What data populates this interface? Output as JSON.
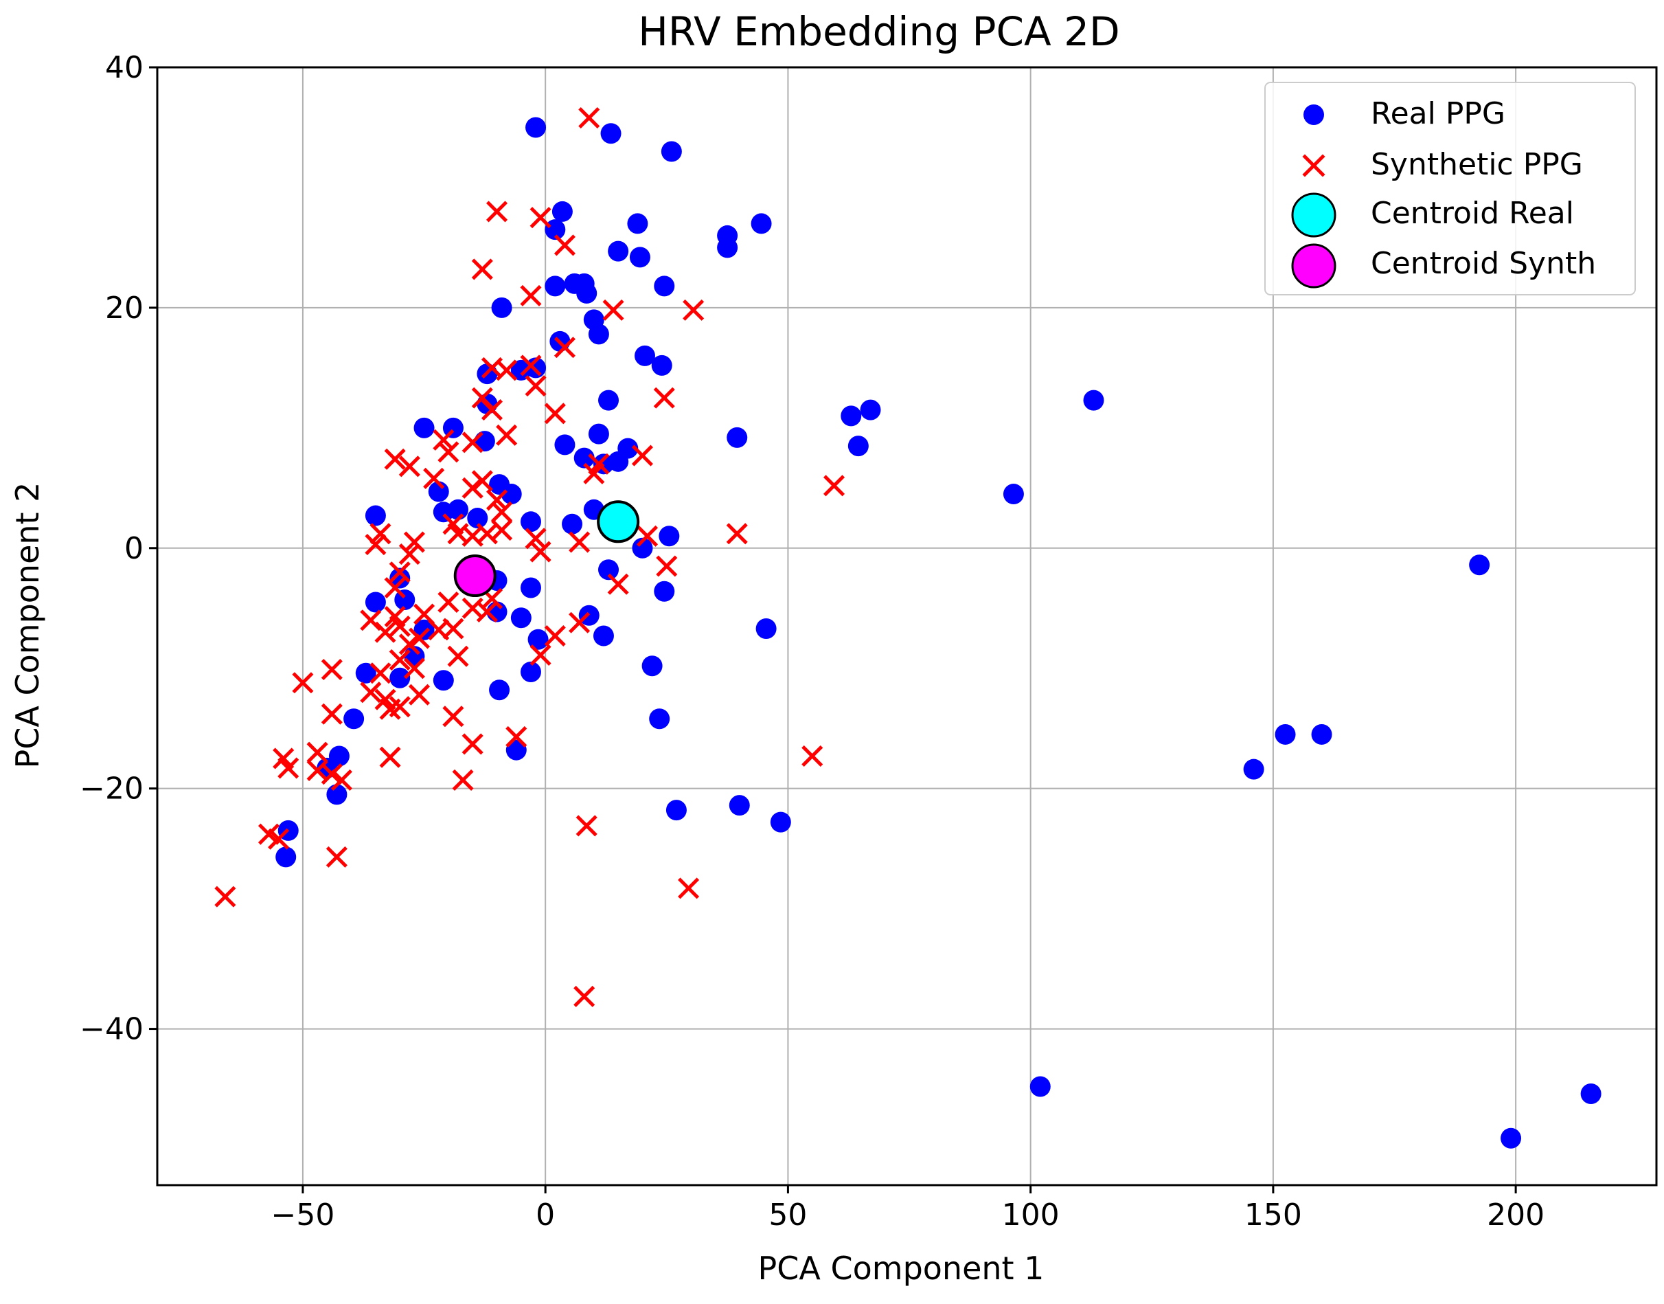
{
  "chart_data": {
    "type": "scatter",
    "title": "HRV Embedding PCA 2D",
    "xlabel": "PCA Component 1",
    "ylabel": "PCA Component 2",
    "xlim": [
      -80,
      229
    ],
    "ylim": [
      -53,
      40
    ],
    "xticks": [
      -50,
      0,
      50,
      100,
      150,
      200
    ],
    "yticks": [
      -40,
      -20,
      0,
      20,
      40
    ],
    "xtick_labels": [
      "−50",
      "0",
      "50",
      "100",
      "150",
      "200"
    ],
    "ytick_labels": [
      "−40",
      "−20",
      "0",
      "20",
      "40"
    ],
    "grid": true,
    "legend_position": "top-right",
    "legend": [
      {
        "label": "Real PPG",
        "marker": "dot",
        "color": "#0000ff"
      },
      {
        "label": "Synthetic PPG",
        "marker": "x",
        "color": "#ff0000"
      },
      {
        "label": "Centroid Real",
        "marker": "big-circle",
        "color": "#00ffff"
      },
      {
        "label": "Centroid Synth",
        "marker": "big-circle",
        "color": "#ff00ff"
      }
    ],
    "series": [
      {
        "name": "Real PPG",
        "marker": "dot",
        "color": "#0000ff",
        "points": [
          [
            -2,
            35
          ],
          [
            13.5,
            34.5
          ],
          [
            26,
            33
          ],
          [
            3.5,
            28
          ],
          [
            19,
            27
          ],
          [
            2,
            26.5
          ],
          [
            37.5,
            26
          ],
          [
            44.5,
            27
          ],
          [
            37.5,
            25
          ],
          [
            15,
            24.7
          ],
          [
            19.5,
            24.2
          ],
          [
            24.5,
            21.8
          ],
          [
            2,
            21.8
          ],
          [
            6,
            22
          ],
          [
            8,
            22
          ],
          [
            8.5,
            21.2
          ],
          [
            -9,
            20
          ],
          [
            10,
            19
          ],
          [
            11,
            17.8
          ],
          [
            3,
            17.2
          ],
          [
            20.5,
            16
          ],
          [
            24,
            15.2
          ],
          [
            -12,
            14.5
          ],
          [
            -5,
            14.8
          ],
          [
            -2,
            15
          ],
          [
            -12,
            12
          ],
          [
            13,
            12.3
          ],
          [
            63,
            11
          ],
          [
            67,
            11.5
          ],
          [
            113,
            12.3
          ],
          [
            -25,
            10
          ],
          [
            -19,
            10
          ],
          [
            11,
            9.5
          ],
          [
            4,
            8.6
          ],
          [
            39.5,
            9.2
          ],
          [
            64.5,
            8.5
          ],
          [
            -12.5,
            8.9
          ],
          [
            17,
            8.3
          ],
          [
            8,
            7.5
          ],
          [
            15,
            7.2
          ],
          [
            12,
            7
          ],
          [
            -9.5,
            5.3
          ],
          [
            -7,
            4.5
          ],
          [
            -22,
            4.7
          ],
          [
            96.5,
            4.5
          ],
          [
            -35,
            2.7
          ],
          [
            -21,
            3
          ],
          [
            -18,
            3.2
          ],
          [
            -14,
            2.5
          ],
          [
            -3,
            2.2
          ],
          [
            5.5,
            2
          ],
          [
            10,
            3.2
          ],
          [
            25.5,
            1
          ],
          [
            20,
            0
          ],
          [
            -30,
            -2.5
          ],
          [
            -10,
            -2.7
          ],
          [
            13,
            -1.8
          ],
          [
            -35,
            -4.5
          ],
          [
            -29,
            -4.3
          ],
          [
            -3,
            -3.3
          ],
          [
            24.5,
            -3.6
          ],
          [
            -10,
            -5.3
          ],
          [
            -5,
            -5.8
          ],
          [
            9,
            -5.6
          ],
          [
            45.5,
            -6.7
          ],
          [
            -25,
            -6.8
          ],
          [
            -1.5,
            -7.6
          ],
          [
            12,
            -7.3
          ],
          [
            -27,
            -9
          ],
          [
            22,
            -9.8
          ],
          [
            -37,
            -10.4
          ],
          [
            -30,
            -10.8
          ],
          [
            -21,
            -11
          ],
          [
            -9.5,
            -11.8
          ],
          [
            -3,
            -10.3
          ],
          [
            -39.5,
            -14.2
          ],
          [
            23.5,
            -14.2
          ],
          [
            -42.5,
            -17.3
          ],
          [
            -6,
            -16.8
          ],
          [
            -45,
            -18.3
          ],
          [
            -43,
            -20.5
          ],
          [
            27,
            -21.8
          ],
          [
            40,
            -21.4
          ],
          [
            48.5,
            -22.8
          ],
          [
            -53,
            -23.5
          ],
          [
            -53.5,
            -25.7
          ],
          [
            146,
            -18.4
          ],
          [
            152.5,
            -15.5
          ],
          [
            160,
            -15.5
          ],
          [
            192.5,
            -1.4
          ],
          [
            102,
            -44.8
          ],
          [
            199,
            -49.1
          ],
          [
            215.5,
            -45.4
          ]
        ]
      },
      {
        "name": "Synthetic PPG",
        "marker": "x",
        "color": "#ff0000",
        "points": [
          [
            9,
            35.8
          ],
          [
            -10,
            28
          ],
          [
            -1,
            27.5
          ],
          [
            4,
            25.2
          ],
          [
            -13,
            23.2
          ],
          [
            -3,
            21
          ],
          [
            14,
            19.8
          ],
          [
            30.5,
            19.8
          ],
          [
            4,
            16.7
          ],
          [
            -11,
            15
          ],
          [
            -8,
            14.8
          ],
          [
            -3,
            15.2
          ],
          [
            -2,
            13.5
          ],
          [
            -13,
            12.5
          ],
          [
            -11,
            11.5
          ],
          [
            2,
            11.2
          ],
          [
            24.5,
            12.5
          ],
          [
            -21,
            9
          ],
          [
            -20,
            8
          ],
          [
            -15,
            8.8
          ],
          [
            -8,
            9.4
          ],
          [
            -31,
            7.4
          ],
          [
            -28,
            6.8
          ],
          [
            -23,
            5.8
          ],
          [
            -15,
            5
          ],
          [
            -13,
            5.6
          ],
          [
            11,
            7
          ],
          [
            10,
            6.2
          ],
          [
            20,
            7.7
          ],
          [
            59.5,
            5.2
          ],
          [
            -10,
            4
          ],
          [
            -9,
            3
          ],
          [
            -19,
            2
          ],
          [
            -18,
            1.2
          ],
          [
            -9,
            1.5
          ],
          [
            -34,
            1.2
          ],
          [
            -35,
            0.3
          ],
          [
            -27,
            0.5
          ],
          [
            -15,
            1
          ],
          [
            -12,
            1.2
          ],
          [
            -2,
            0.8
          ],
          [
            7,
            0.5
          ],
          [
            21,
            1
          ],
          [
            25,
            -1.5
          ],
          [
            39.5,
            1.2
          ],
          [
            -28,
            -0.5
          ],
          [
            -1,
            -0.3
          ],
          [
            -30,
            -2
          ],
          [
            -31,
            -3.3
          ],
          [
            15,
            -3
          ],
          [
            -11,
            -4.2
          ],
          [
            -20,
            -4.5
          ],
          [
            -15,
            -5
          ],
          [
            -25,
            -5.5
          ],
          [
            -31,
            -5.7
          ],
          [
            -12,
            -5.3
          ],
          [
            -36,
            -6
          ],
          [
            -33,
            -7
          ],
          [
            -30,
            -6.5
          ],
          [
            -22,
            -6.8
          ],
          [
            -19,
            -6.7
          ],
          [
            -28,
            -8
          ],
          [
            -26,
            -7.5
          ],
          [
            -30,
            -9.3
          ],
          [
            2,
            -7.3
          ],
          [
            7,
            -6.2
          ],
          [
            -1,
            -8.9
          ],
          [
            -27,
            -10
          ],
          [
            -34,
            -10.4
          ],
          [
            -44,
            -10.1
          ],
          [
            -50,
            -11.2
          ],
          [
            -36,
            -12
          ],
          [
            -26,
            -12.2
          ],
          [
            -33,
            -12.6
          ],
          [
            -32,
            -13.4
          ],
          [
            -30,
            -13.2
          ],
          [
            -44,
            -13.8
          ],
          [
            -19,
            -14
          ],
          [
            -18,
            -9
          ],
          [
            -15,
            -16.3
          ],
          [
            -6,
            -15.7
          ],
          [
            -32,
            -17.4
          ],
          [
            -47,
            -17
          ],
          [
            -54,
            -17.5
          ],
          [
            -53,
            -18.3
          ],
          [
            -47,
            -18.5
          ],
          [
            -44,
            -18.8
          ],
          [
            -42,
            -19.3
          ],
          [
            -17,
            -19.3
          ],
          [
            55,
            -17.3
          ],
          [
            -57,
            -23.8
          ],
          [
            -55,
            -24.2
          ],
          [
            8.5,
            -23.1
          ],
          [
            -43,
            -25.7
          ],
          [
            29.5,
            -28.3
          ],
          [
            -66,
            -29
          ],
          [
            8,
            -37.3
          ]
        ]
      },
      {
        "name": "Centroid Real",
        "marker": "big-circle",
        "color": "#00ffff",
        "points": [
          [
            15,
            2.2
          ]
        ]
      },
      {
        "name": "Centroid Synth",
        "marker": "big-circle",
        "color": "#ff00ff",
        "points": [
          [
            -14.5,
            -2.3
          ]
        ]
      }
    ]
  }
}
